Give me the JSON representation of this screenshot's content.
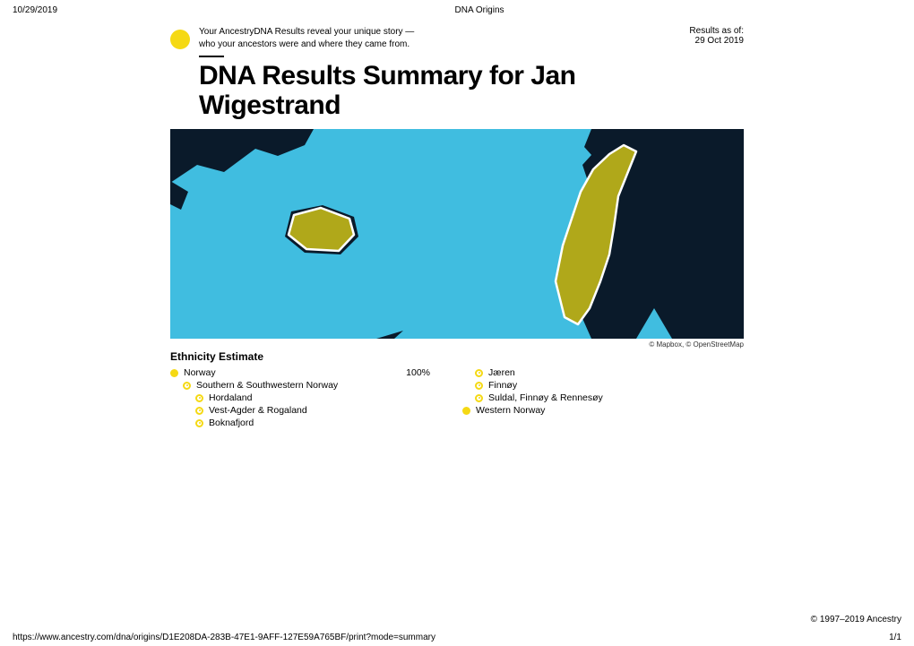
{
  "print": {
    "date": "10/29/2019",
    "doc_title": "DNA Origins",
    "url": "https://www.ancestry.com/dna/origins/D1E208DA-283B-47E1-9AFF-127E59A765BF/print?mode=summary",
    "page": "1/1"
  },
  "intro": {
    "line1": "Your AncestryDNA Results reveal your unique story —",
    "line2": "who your ancestors were and where they came from."
  },
  "results_asof": {
    "label": "Results as of:",
    "date": "29 Oct 2019"
  },
  "title": "DNA Results Summary for Jan Wigestrand",
  "map": {
    "bg_sea": "#40bde0",
    "land_dark": "#0a1a2a",
    "highlight": "#b0a81a",
    "outline": "#ffffff",
    "attribution": "© Mapbox, © OpenStreetMap"
  },
  "ethnicity": {
    "heading": "Ethnicity Estimate",
    "accent": "#f5d914",
    "left": [
      {
        "label": "Norway",
        "pct": "100%",
        "style": "solid",
        "indent": 0
      },
      {
        "label": "Southern & Southwestern Norway",
        "style": "ringdot",
        "indent": 1
      },
      {
        "label": "Hordaland",
        "style": "ringdot",
        "indent": 2
      },
      {
        "label": "Vest-Agder & Rogaland",
        "style": "ringdot",
        "indent": 2
      },
      {
        "label": "Boknafjord",
        "style": "ringdot",
        "indent": 2
      }
    ],
    "right": [
      {
        "label": "Jæren",
        "style": "ringdot",
        "indent": 0
      },
      {
        "label": "Finnøy",
        "style": "ringdot",
        "indent": 0
      },
      {
        "label": "Suldal, Finnøy & Rennesøy",
        "style": "ringdot",
        "indent": 0
      },
      {
        "label": "Western Norway",
        "style": "solid",
        "indent": -1
      }
    ]
  },
  "copyright": "© 1997–2019 Ancestry"
}
